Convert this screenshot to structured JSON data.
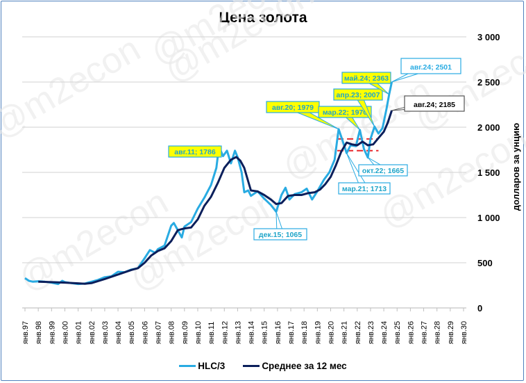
{
  "chart_data": {
    "type": "line",
    "title": "Цена золота",
    "xlabel": "",
    "ylabel": "долларов за унцию",
    "ylim": [
      0,
      3000
    ],
    "yticks": [
      0,
      500,
      1000,
      1500,
      2000,
      2500,
      3000
    ],
    "ytick_labels": [
      "0",
      "500",
      "1 000",
      "1 500",
      "2 000",
      "2 500",
      "3 000"
    ],
    "xtick_labels": [
      "янв.97",
      "янв.98",
      "янв.99",
      "янв.00",
      "янв.01",
      "янв.02",
      "янв.03",
      "янв.04",
      "янв.05",
      "янв.06",
      "янв.07",
      "янв.08",
      "янв.09",
      "янв.10",
      "янв.11",
      "янв.12",
      "янв.13",
      "янв.14",
      "янв.15",
      "янв.16",
      "янв.17",
      "янв.18",
      "янв.19",
      "янв.20",
      "янв.21",
      "янв.22",
      "янв.23",
      "янв.24",
      "янв.25",
      "янв.26",
      "янв.27",
      "янв.28",
      "янв.29",
      "янв.30"
    ],
    "grid": true,
    "legend_position": "bottom",
    "series": [
      {
        "name": "HLC/3",
        "color": "#29abe2",
        "x": [
          1997.0,
          1997.3,
          1997.6,
          1998.0,
          1998.5,
          1999.0,
          1999.5,
          1999.8,
          2000.0,
          2000.5,
          2001.0,
          2001.5,
          2002.0,
          2002.5,
          2003.0,
          2003.5,
          2004.0,
          2004.5,
          2005.0,
          2005.5,
          2006.0,
          2006.4,
          2006.8,
          2007.0,
          2007.5,
          2008.0,
          2008.2,
          2008.8,
          2009.0,
          2009.5,
          2010.0,
          2010.5,
          2011.0,
          2011.4,
          2011.6,
          2011.9,
          2012.2,
          2012.5,
          2012.8,
          2013.0,
          2013.3,
          2013.5,
          2013.8,
          2014.0,
          2014.5,
          2015.0,
          2015.5,
          2015.9,
          2016.3,
          2016.6,
          2016.9,
          2017.3,
          2017.8,
          2018.2,
          2018.6,
          2019.0,
          2019.5,
          2019.9,
          2020.3,
          2020.6,
          2020.9,
          2021.2,
          2021.5,
          2021.9,
          2022.2,
          2022.5,
          2022.8,
          2023.0,
          2023.3,
          2023.6,
          2023.9,
          2024.2,
          2024.4,
          2024.6
        ],
        "values": [
          330,
          300,
          290,
          295,
          290,
          280,
          265,
          300,
          285,
          275,
          265,
          270,
          290,
          310,
          340,
          350,
          400,
          395,
          425,
          440,
          550,
          640,
          610,
          650,
          690,
          910,
          940,
          780,
          900,
          950,
          1100,
          1220,
          1360,
          1550,
          1786,
          1680,
          1740,
          1600,
          1740,
          1670,
          1500,
          1280,
          1300,
          1240,
          1290,
          1210,
          1140,
          1065,
          1250,
          1330,
          1200,
          1260,
          1280,
          1320,
          1200,
          1290,
          1420,
          1500,
          1640,
          1979,
          1850,
          1713,
          1800,
          1790,
          1970,
          1760,
          1665,
          1870,
          2007,
          1930,
          1990,
          2200,
          2363,
          2501
        ]
      },
      {
        "name": "Среднее за 12 мес",
        "color": "#0b1f5b",
        "x": [
          1998.0,
          1999.0,
          2000.0,
          2001.0,
          2001.5,
          2002.0,
          2003.0,
          2004.0,
          2005.0,
          2005.5,
          2006.0,
          2006.5,
          2007.0,
          2007.5,
          2008.0,
          2008.5,
          2009.0,
          2009.5,
          2010.0,
          2010.5,
          2011.0,
          2011.5,
          2012.0,
          2012.5,
          2012.9,
          2013.2,
          2013.5,
          2013.8,
          2014.0,
          2014.5,
          2015.0,
          2015.5,
          2015.9,
          2016.3,
          2016.8,
          2017.3,
          2017.8,
          2018.3,
          2018.8,
          2019.2,
          2019.6,
          2020.0,
          2020.4,
          2020.8,
          2021.2,
          2021.6,
          2022.0,
          2022.4,
          2022.8,
          2023.2,
          2023.6,
          2024.0,
          2024.3,
          2024.6
        ],
        "values": [
          290,
          285,
          280,
          272,
          268,
          275,
          320,
          370,
          420,
          440,
          500,
          580,
          630,
          660,
          740,
          860,
          880,
          890,
          980,
          1130,
          1230,
          1380,
          1550,
          1640,
          1670,
          1630,
          1550,
          1400,
          1300,
          1290,
          1250,
          1200,
          1150,
          1160,
          1240,
          1250,
          1250,
          1270,
          1280,
          1310,
          1370,
          1450,
          1580,
          1730,
          1830,
          1810,
          1800,
          1840,
          1800,
          1810,
          1880,
          1950,
          2050,
          2185
        ]
      }
    ],
    "annotations": [
      {
        "label": "авг.11; 1786",
        "series": "HLC/3",
        "style": "yellow"
      },
      {
        "label": "дек.15; 1065",
        "series": "HLC/3",
        "style": "white-blue"
      },
      {
        "label": "авг.20; 1979",
        "series": "HLC/3",
        "style": "yellow"
      },
      {
        "label": "мар.21; 1713",
        "series": "HLC/3",
        "style": "white-blue"
      },
      {
        "label": "мар.22; 1970",
        "series": "HLC/3",
        "style": "yellow"
      },
      {
        "label": "окт.22; 1665",
        "series": "HLC/3",
        "style": "white-blue"
      },
      {
        "label": "апр.23; 2007",
        "series": "HLC/3",
        "style": "yellow"
      },
      {
        "label": "май.24; 2363",
        "series": "HLC/3",
        "style": "yellow"
      },
      {
        "label": "авг.24; 2501",
        "series": "HLC/3",
        "style": "white-blue-large"
      },
      {
        "label": "авг.24; 2185",
        "series": "Среднее за 12 мес",
        "style": "white-black-large"
      }
    ],
    "reference_lines": [
      {
        "type": "dashed",
        "color": "#e8262a",
        "y": 1870,
        "x_from": 2020.5,
        "x_to": 2023.6
      },
      {
        "type": "dashed",
        "color": "#e8262a",
        "y": 1740,
        "x_from": 2020.5,
        "x_to": 2023.6
      }
    ]
  },
  "watermark": "@m2econ",
  "legend": {
    "items": [
      {
        "label": "HLC/3",
        "color": "#29abe2"
      },
      {
        "label": "Среднее за 12 мес",
        "color": "#0b1f5b"
      }
    ]
  }
}
